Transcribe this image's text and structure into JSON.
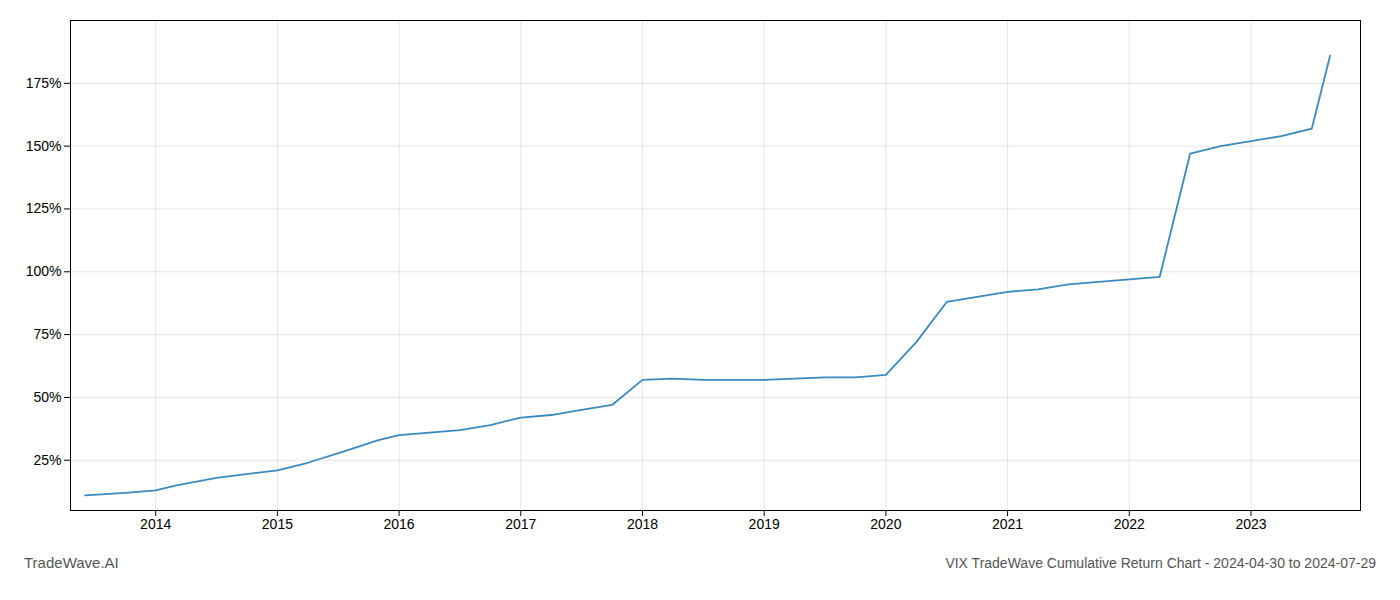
{
  "chart_data": {
    "type": "line",
    "title": "VIX TradeWave Cumulative Return Chart - 2024-04-30 to 2024-07-29",
    "annotations": [
      "TradeWave.AI"
    ],
    "x": [
      2013.42,
      2013.75,
      2014.0,
      2014.17,
      2014.5,
      2014.83,
      2015.0,
      2015.25,
      2015.58,
      2015.83,
      2016.0,
      2016.25,
      2016.5,
      2016.75,
      2017.0,
      2017.25,
      2017.5,
      2017.75,
      2018.0,
      2018.25,
      2018.5,
      2018.75,
      2019.0,
      2019.25,
      2019.5,
      2019.75,
      2020.0,
      2020.25,
      2020.5,
      2020.75,
      2021.0,
      2021.25,
      2021.5,
      2021.75,
      2022.0,
      2022.25,
      2022.5,
      2022.75,
      2023.0,
      2023.25,
      2023.5,
      2023.65
    ],
    "values": [
      11,
      12,
      13,
      15,
      18,
      20,
      21,
      24,
      29,
      33,
      35,
      36,
      37,
      39,
      42,
      43,
      45,
      47,
      57,
      57.5,
      57,
      57,
      57,
      57.5,
      58,
      58,
      59,
      72,
      88,
      90,
      92,
      93,
      95,
      96,
      97,
      98,
      147,
      150,
      152,
      154,
      157,
      186
    ],
    "color": "#3a8abf",
    "xlim": [
      2013.3,
      2023.9
    ],
    "xticks": [
      2014,
      2015,
      2016,
      2017,
      2018,
      2019,
      2020,
      2021,
      2022,
      2023
    ],
    "ylim": [
      5,
      200
    ],
    "yticks": [
      {
        "value": 25,
        "label": "25%"
      },
      {
        "value": 50,
        "label": "50%"
      },
      {
        "value": 75,
        "label": "75%"
      },
      {
        "value": 100,
        "label": "100%"
      },
      {
        "value": 125,
        "label": "125%"
      },
      {
        "value": 150,
        "label": "150%"
      },
      {
        "value": 175,
        "label": "175%"
      }
    ],
    "grid": true
  }
}
